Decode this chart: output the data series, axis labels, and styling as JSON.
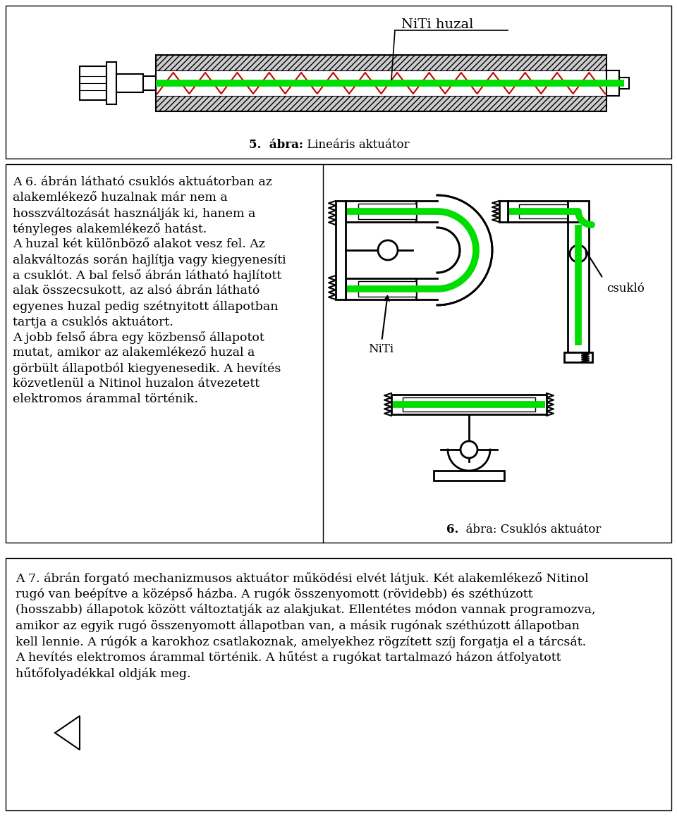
{
  "bg_color": "#ffffff",
  "border_color": "#000000",
  "green_color": "#00dd00",
  "red_color": "#cc0000",
  "black": "#000000",
  "label_niti_huzal": "NiTi huzal",
  "caption5_bold": "5.  ábra:",
  "caption5_normal": " Lineáris aktuátor",
  "middle_paragraphs": [
    "A 6. ábrán látható csuklós aktuátorban az",
    "alakemlékező huzalnak már nem a",
    "hosszváltozását használják ki, hanem a",
    "tényleges alakemlékező hatást.",
    "A huzal két különböző alakot vesz fel. Az",
    "alakváltozás során hajlítja vagy kiegyenesíti",
    "a csuklót. A bal felső ábrán látható hajlított",
    "alak összecsukott, az alsó ábrán látható",
    "egyenes huzal pedig szétnyitott állapotban",
    "tartja a csuklós aktuátort.",
    "A jobb felső ábra egy közbenső állapotot",
    "mutat, amikor az alakemlékező huzal a",
    "görbült állapotból kiegyenesedik. A hevítés",
    "közvetlenül a Nitinol huzalon átvezetett",
    "elektromos árammal történik."
  ],
  "caption6_bold": "6.",
  "caption6_normal": "  ábra: Csuklós aktuátor",
  "label_niti": "NiTi",
  "label_csuklO": "csukló",
  "bottom_paragraphs": [
    "A 7. ábrán forgató mechanizmusos aktuátor működési elvét látjuk. Két alakemlékező Nitinol",
    "rugó van beépítve a középső házba. A rugók összenyomott (rövidebb) és széthúzott",
    "(hosszabb) állapotok között változtatják az alakjukat. Ellentétes módon vannak programozva,",
    "amikor az egyik rugó összenyomott állapotban van, a másik rugónak széthúzott állapotban",
    "kell lennie. A rúgók a karokhoz csatlakoznak, amelyekhez rögzített szíj forgatja el a tárcsát.",
    "A hevítés elektromos árammal történik. A hűtést a rugókat tartalmazó házon átfolyatott",
    "hűtőfolyadékkal oldják meg."
  ]
}
